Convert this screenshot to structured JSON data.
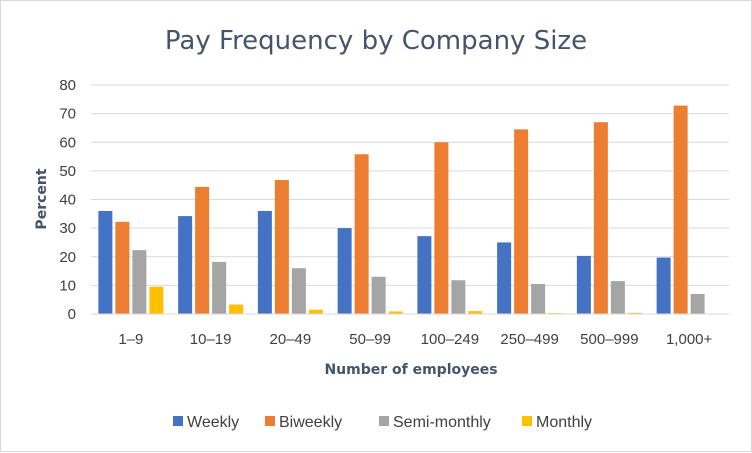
{
  "chart_data": {
    "type": "bar",
    "title": "Pay Frequency by Company Size",
    "xlabel": "Number of employees",
    "ylabel": "Percent",
    "ylim": [
      0,
      80
    ],
    "yticks": [
      0,
      10,
      20,
      30,
      40,
      50,
      60,
      70,
      80
    ],
    "categories": [
      "1–9",
      "10–19",
      "20–49",
      "50–99",
      "100–249",
      "250–499",
      "500–999",
      "1,000+"
    ],
    "series": [
      {
        "name": "Weekly",
        "color": "#4472c4",
        "values": [
          36,
          34.2,
          36,
          30,
          27.2,
          25,
          20.3,
          19.7
        ]
      },
      {
        "name": "Biweekly",
        "color": "#ed7d31",
        "values": [
          32.2,
          44.4,
          46.8,
          55.8,
          60,
          64.5,
          67,
          72.8
        ]
      },
      {
        "name": "Semi-monthly",
        "color": "#a5a5a5",
        "values": [
          22.3,
          18.2,
          16,
          13,
          11.8,
          10.5,
          11.5,
          7
        ]
      },
      {
        "name": "Monthly",
        "color": "#ffc000",
        "values": [
          9.5,
          3.3,
          1.5,
          0.9,
          1,
          0.3,
          0.4,
          0
        ]
      }
    ],
    "grid": true,
    "legend_position": "bottom"
  }
}
